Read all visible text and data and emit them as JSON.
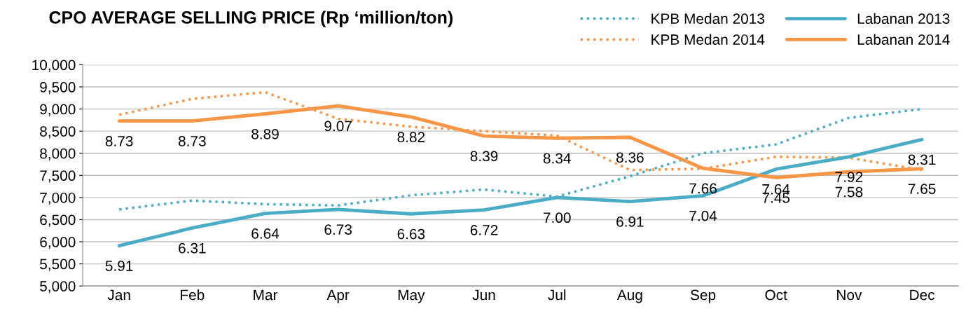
{
  "chart_data": {
    "type": "line",
    "title": "CPO AVERAGE SELLING PRICE (Rp ‘million/ton)",
    "categories": [
      "Jan",
      "Feb",
      "Mar",
      "Apr",
      "May",
      "Jun",
      "Jul",
      "Aug",
      "Sep",
      "Oct",
      "Nov",
      "Dec"
    ],
    "series": [
      {
        "name": "KPB Medan 2013",
        "color": "#4bacc6",
        "line_style": "dotted",
        "values": [
          6730,
          6930,
          6850,
          6820,
          7050,
          7180,
          7020,
          7480,
          8000,
          8200,
          8800,
          9000
        ]
      },
      {
        "name": "KPB Medan 2014",
        "color": "#f79646",
        "line_style": "dotted",
        "values": [
          8870,
          9230,
          9380,
          8780,
          8600,
          8500,
          8400,
          7620,
          7650,
          7920,
          7900,
          7620
        ]
      },
      {
        "name": "Labanan 2013",
        "color": "#4bacc6",
        "line_style": "solid",
        "values": [
          5910,
          6310,
          6640,
          6730,
          6630,
          6720,
          7000,
          6910,
          7040,
          7640,
          7920,
          8310
        ]
      },
      {
        "name": "Labanan 2014",
        "color": "#f79646",
        "line_style": "solid",
        "values": [
          8730,
          8730,
          8890,
          9070,
          8820,
          8390,
          8340,
          8360,
          7660,
          7450,
          7580,
          7650
        ]
      }
    ],
    "annotations": [
      {
        "text": "5.91",
        "x": "Jan",
        "y": 5910
      },
      {
        "text": "6.31",
        "x": "Feb",
        "y": 6310
      },
      {
        "text": "6.64",
        "x": "Mar",
        "y": 6640
      },
      {
        "text": "6.73",
        "x": "Apr",
        "y": 6730
      },
      {
        "text": "6.63",
        "x": "May",
        "y": 6630
      },
      {
        "text": "6.72",
        "x": "Jun",
        "y": 6720
      },
      {
        "text": "7.00",
        "x": "Jul",
        "y": 7000
      },
      {
        "text": "6.91",
        "x": "Aug",
        "y": 6910
      },
      {
        "text": "7.04",
        "x": "Sep",
        "y": 7040
      },
      {
        "text": "7.64",
        "x": "Oct",
        "y": 7640
      },
      {
        "text": "7.92",
        "x": "Nov",
        "y": 7920
      },
      {
        "text": "8.31",
        "x": "Dec",
        "y": 8310
      },
      {
        "text": "8.73",
        "x": "Jan",
        "y": 8730
      },
      {
        "text": "8.73",
        "x": "Feb",
        "y": 8730
      },
      {
        "text": "8.89",
        "x": "Mar",
        "y": 8890
      },
      {
        "text": "9.07",
        "x": "Apr",
        "y": 9070
      },
      {
        "text": "8.82",
        "x": "May",
        "y": 8820
      },
      {
        "text": "8.39",
        "x": "Jun",
        "y": 8390
      },
      {
        "text": "8.34",
        "x": "Jul",
        "y": 8340
      },
      {
        "text": "8.36",
        "x": "Aug",
        "y": 8360
      },
      {
        "text": "7.66",
        "x": "Sep",
        "y": 7660
      },
      {
        "text": "7.45",
        "x": "Oct",
        "y": 7450
      },
      {
        "text": "7.58",
        "x": "Nov",
        "y": 7580
      },
      {
        "text": "7.65",
        "x": "Dec",
        "y": 7650
      }
    ],
    "ylim": [
      5000,
      10000
    ],
    "yticks": [
      {
        "value": 5000,
        "label": "5,000"
      },
      {
        "value": 5500,
        "label": "5,500"
      },
      {
        "value": 6000,
        "label": "6,000"
      },
      {
        "value": 6500,
        "label": "6,500"
      },
      {
        "value": 7000,
        "label": "7,000"
      },
      {
        "value": 7500,
        "label": "7,500"
      },
      {
        "value": 8000,
        "label": "8,000"
      },
      {
        "value": 8500,
        "label": "8,500"
      },
      {
        "value": 9000,
        "label": "9,000"
      },
      {
        "value": 9500,
        "label": "9,500"
      },
      {
        "value": 10000,
        "label": "10,000"
      }
    ],
    "grid": "y",
    "legend": "top right",
    "marker": "none"
  }
}
